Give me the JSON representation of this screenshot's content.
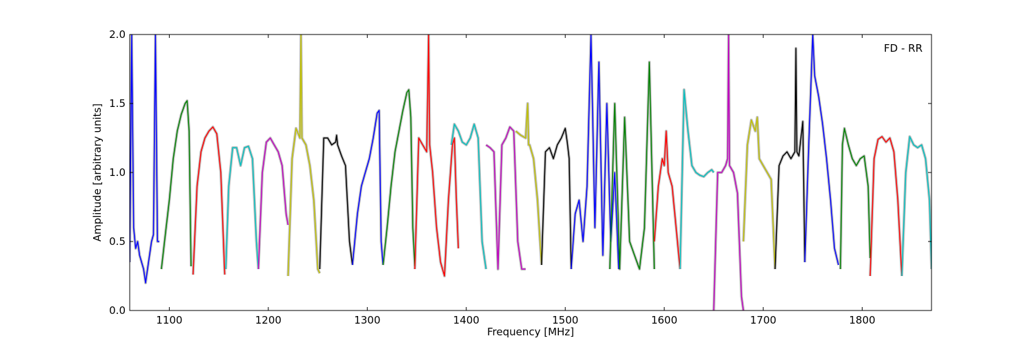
{
  "chart_data": {
    "type": "line",
    "title": "",
    "xlabel": "Frequency [MHz]",
    "ylabel": "Amplitude [arbitrary units]",
    "xlim": [
      1060,
      1870
    ],
    "ylim": [
      0,
      2.0
    ],
    "grid": false,
    "annotation": "FD - RR",
    "x_ticks": [
      1100,
      1200,
      1300,
      1400,
      1500,
      1600,
      1700,
      1800
    ],
    "x_tick_labels": [
      "1100",
      "1200",
      "1300",
      "1400",
      "1500",
      "1600",
      "1700",
      "1800"
    ],
    "y_ticks": [
      0,
      0.5,
      1.0,
      1.5,
      2.0
    ],
    "y_tick_labels": [
      "0.0",
      "0.5",
      "1.0",
      "1.5",
      "2.0"
    ],
    "background_color": "#c0c0c0",
    "series": [
      {
        "color": "#0000ff",
        "x": [
          1060,
          1062,
          1064,
          1066,
          1068,
          1070,
          1072,
          1074,
          1076,
          1078,
          1080,
          1082,
          1084,
          1086,
          1088,
          1090
        ],
        "y": [
          0.35,
          2.0,
          0.6,
          0.45,
          0.5,
          0.4,
          0.35,
          0.3,
          0.2,
          0.3,
          0.4,
          0.5,
          0.55,
          2.0,
          0.5,
          0.5
        ]
      },
      {
        "color": "#008000",
        "x": [
          1092,
          1096,
          1100,
          1104,
          1108,
          1112,
          1116,
          1118,
          1120,
          1122
        ],
        "y": [
          0.3,
          0.55,
          0.8,
          1.1,
          1.3,
          1.42,
          1.5,
          1.52,
          1.3,
          0.32
        ]
      },
      {
        "color": "#ff0000",
        "x": [
          1124,
          1128,
          1132,
          1136,
          1140,
          1144,
          1148,
          1152,
          1156
        ],
        "y": [
          0.26,
          0.9,
          1.15,
          1.25,
          1.3,
          1.33,
          1.28,
          1.0,
          0.26
        ]
      },
      {
        "color": "#00bfbf",
        "x": [
          1157,
          1160,
          1164,
          1168,
          1172,
          1176,
          1180,
          1184,
          1188,
          1190
        ],
        "y": [
          0.3,
          0.9,
          1.18,
          1.18,
          1.05,
          1.18,
          1.19,
          1.1,
          0.5,
          0.3
        ]
      },
      {
        "color": "#bf00bf",
        "x": [
          1190,
          1194,
          1198,
          1202,
          1206,
          1210,
          1214,
          1218,
          1220
        ],
        "y": [
          0.3,
          1.0,
          1.22,
          1.25,
          1.2,
          1.15,
          1.05,
          0.7,
          0.62
        ]
      },
      {
        "color": "#bfbf00",
        "x": [
          1220,
          1224,
          1228,
          1232,
          1233,
          1234,
          1238,
          1242,
          1246,
          1250,
          1252
        ],
        "y": [
          0.25,
          1.1,
          1.32,
          1.25,
          2.0,
          1.25,
          1.2,
          1.05,
          0.8,
          0.3,
          0.27
        ]
      },
      {
        "color": "#000000",
        "x": [
          1252,
          1256,
          1260,
          1264,
          1268,
          1269,
          1270,
          1274,
          1278,
          1282,
          1285
        ],
        "y": [
          0.3,
          1.25,
          1.25,
          1.2,
          1.22,
          1.27,
          1.2,
          1.12,
          1.05,
          0.5,
          0.33
        ]
      },
      {
        "color": "#0000ff",
        "x": [
          1285,
          1290,
          1294,
          1298,
          1302,
          1306,
          1310,
          1312,
          1314,
          1316
        ],
        "y": [
          0.33,
          0.7,
          0.9,
          1.0,
          1.1,
          1.25,
          1.43,
          1.45,
          0.5,
          0.33
        ]
      },
      {
        "color": "#008000",
        "x": [
          1316,
          1320,
          1324,
          1328,
          1332,
          1336,
          1340,
          1342,
          1344,
          1346,
          1348
        ],
        "y": [
          0.33,
          0.6,
          0.9,
          1.15,
          1.3,
          1.45,
          1.58,
          1.6,
          1.4,
          0.6,
          0.32
        ]
      },
      {
        "color": "#ff0000",
        "x": [
          1348,
          1352,
          1356,
          1360,
          1362,
          1363,
          1366,
          1370,
          1374,
          1378,
          1382,
          1386,
          1388,
          1390,
          1392
        ],
        "y": [
          0.3,
          1.25,
          1.2,
          1.15,
          2.0,
          1.2,
          1.0,
          0.6,
          0.35,
          0.25,
          0.8,
          1.2,
          1.25,
          0.8,
          0.45
        ]
      },
      {
        "color": "#00bfbf",
        "x": [
          1385,
          1388,
          1392,
          1396,
          1400,
          1404,
          1408,
          1412,
          1416,
          1420
        ],
        "y": [
          1.2,
          1.35,
          1.3,
          1.22,
          1.2,
          1.25,
          1.35,
          1.25,
          0.5,
          0.3
        ]
      },
      {
        "color": "#bf00bf",
        "x": [
          1420,
          1424,
          1428,
          1432,
          1436,
          1440,
          1444,
          1448,
          1452,
          1456,
          1460
        ],
        "y": [
          1.2,
          1.18,
          1.15,
          0.3,
          1.2,
          1.25,
          1.33,
          1.3,
          0.5,
          0.3,
          0.3
        ]
      },
      {
        "color": "#bfbf00",
        "x": [
          1450,
          1455,
          1460,
          1462,
          1463,
          1464,
          1468,
          1472,
          1476
        ],
        "y": [
          1.3,
          1.27,
          1.25,
          1.5,
          1.2,
          1.2,
          1.1,
          0.8,
          0.33
        ]
      },
      {
        "color": "#000000",
        "x": [
          1476,
          1480,
          1484,
          1488,
          1492,
          1496,
          1500,
          1502,
          1504,
          1506
        ],
        "y": [
          0.33,
          1.15,
          1.18,
          1.1,
          1.2,
          1.25,
          1.32,
          1.22,
          1.1,
          0.3
        ]
      },
      {
        "color": "#0000ff",
        "x": [
          1506,
          1510,
          1514,
          1518,
          1522,
          1526,
          1528,
          1530,
          1534,
          1538,
          1542,
          1546,
          1550,
          1554
        ],
        "y": [
          0.3,
          0.7,
          0.8,
          0.5,
          0.9,
          2.0,
          1.3,
          0.6,
          1.8,
          0.4,
          1.5,
          0.5,
          1.0,
          0.3
        ]
      },
      {
        "color": "#008000",
        "x": [
          1545,
          1550,
          1555,
          1560,
          1565,
          1570,
          1575,
          1580,
          1585,
          1590
        ],
        "y": [
          0.3,
          1.5,
          0.3,
          1.4,
          0.5,
          0.4,
          0.3,
          0.6,
          1.8,
          0.3
        ]
      },
      {
        "color": "#ff0000",
        "x": [
          1590,
          1594,
          1598,
          1600,
          1602,
          1604,
          1608,
          1612,
          1616
        ],
        "y": [
          0.5,
          0.9,
          1.1,
          1.05,
          1.3,
          1.0,
          0.9,
          0.6,
          0.3
        ]
      },
      {
        "color": "#00bfbf",
        "x": [
          1616,
          1620,
          1624,
          1628,
          1632,
          1636,
          1640,
          1644,
          1648,
          1650
        ],
        "y": [
          0.3,
          1.6,
          1.3,
          1.05,
          1.0,
          0.98,
          0.97,
          1.0,
          1.02,
          1.0
        ]
      },
      {
        "color": "#bf00bf",
        "x": [
          1650,
          1654,
          1658,
          1662,
          1664,
          1665,
          1666,
          1670,
          1674,
          1678,
          1680
        ],
        "y": [
          0.0,
          1.0,
          1.0,
          1.05,
          1.1,
          2.0,
          1.05,
          1.0,
          0.85,
          0.1,
          0.0
        ]
      },
      {
        "color": "#bfbf00",
        "x": [
          1680,
          1684,
          1688,
          1692,
          1694,
          1696,
          1700,
          1704,
          1708,
          1712
        ],
        "y": [
          0.5,
          1.2,
          1.38,
          1.3,
          1.4,
          1.1,
          1.05,
          1.0,
          0.95,
          0.3
        ]
      },
      {
        "color": "#000000",
        "x": [
          1712,
          1716,
          1720,
          1724,
          1728,
          1732,
          1733,
          1734,
          1736,
          1740,
          1742
        ],
        "y": [
          0.3,
          1.05,
          1.12,
          1.15,
          1.1,
          1.15,
          1.9,
          1.15,
          1.12,
          1.37,
          0.35
        ]
      },
      {
        "color": "#0000ff",
        "x": [
          1742,
          1746,
          1750,
          1752,
          1756,
          1760,
          1764,
          1768,
          1772,
          1776
        ],
        "y": [
          0.35,
          1.2,
          2.0,
          1.7,
          1.55,
          1.35,
          1.1,
          0.8,
          0.45,
          0.33
        ]
      },
      {
        "color": "#008000",
        "x": [
          1778,
          1780,
          1782,
          1786,
          1790,
          1794,
          1798,
          1802,
          1806,
          1808
        ],
        "y": [
          0.3,
          1.2,
          1.32,
          1.2,
          1.1,
          1.05,
          1.1,
          1.12,
          0.9,
          0.38
        ]
      },
      {
        "color": "#ff0000",
        "x": [
          1808,
          1812,
          1816,
          1820,
          1824,
          1828,
          1832,
          1836,
          1840
        ],
        "y": [
          0.25,
          1.1,
          1.24,
          1.26,
          1.22,
          1.25,
          1.15,
          0.8,
          0.25
        ]
      },
      {
        "color": "#00bfbf",
        "x": [
          1840,
          1844,
          1848,
          1852,
          1856,
          1860,
          1864,
          1868,
          1870
        ],
        "y": [
          0.25,
          1.0,
          1.26,
          1.2,
          1.18,
          1.2,
          1.1,
          0.8,
          0.3
        ]
      }
    ]
  }
}
